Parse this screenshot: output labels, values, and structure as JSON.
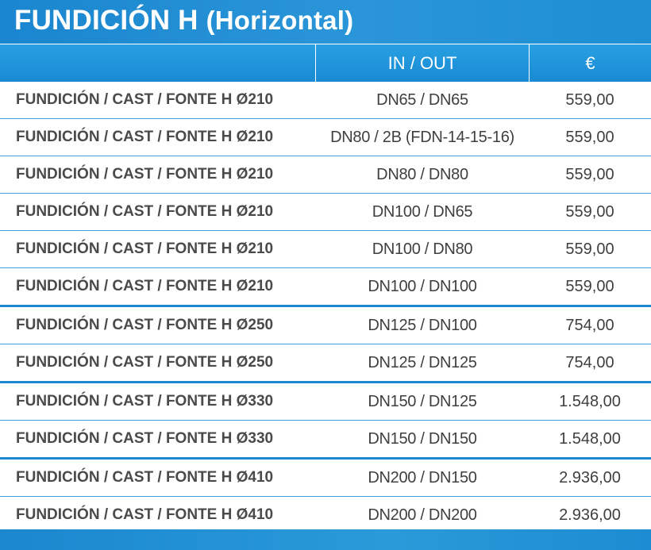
{
  "title": {
    "main": "FUNDICIÓN H",
    "paren": "(Horizontal)"
  },
  "table": {
    "headers": {
      "model": "",
      "inout": "IN / OUT",
      "price": "€"
    },
    "rows": [
      {
        "model": "FUNDICIÓN / CAST / FONTE H Ø210",
        "inout": "DN65 / DN65",
        "price": "559,00",
        "group_end": false
      },
      {
        "model": "FUNDICIÓN / CAST / FONTE H Ø210",
        "inout": "DN80 / 2B (FDN-14-15-16)",
        "price": "559,00",
        "group_end": false
      },
      {
        "model": "FUNDICIÓN / CAST / FONTE H Ø210",
        "inout": "DN80 / DN80",
        "price": "559,00",
        "group_end": false
      },
      {
        "model": "FUNDICIÓN / CAST / FONTE H Ø210",
        "inout": "DN100 / DN65",
        "price": "559,00",
        "group_end": false
      },
      {
        "model": "FUNDICIÓN / CAST / FONTE H Ø210",
        "inout": "DN100 / DN80",
        "price": "559,00",
        "group_end": false
      },
      {
        "model": "FUNDICIÓN / CAST / FONTE H Ø210",
        "inout": "DN100 / DN100",
        "price": "559,00",
        "group_end": true
      },
      {
        "model": "FUNDICIÓN / CAST / FONTE H Ø250",
        "inout": "DN125 / DN100",
        "price": "754,00",
        "group_end": false
      },
      {
        "model": "FUNDICIÓN / CAST / FONTE H Ø250",
        "inout": "DN125 / DN125",
        "price": "754,00",
        "group_end": true
      },
      {
        "model": "FUNDICIÓN / CAST / FONTE H Ø330",
        "inout": "DN150 / DN125",
        "price": "1.548,00",
        "group_end": false
      },
      {
        "model": "FUNDICIÓN / CAST / FONTE H Ø330",
        "inout": "DN150 / DN150",
        "price": "1.548,00",
        "group_end": true
      },
      {
        "model": "FUNDICIÓN / CAST / FONTE H Ø410",
        "inout": "DN200 / DN150",
        "price": "2.936,00",
        "group_end": false
      },
      {
        "model": "FUNDICIÓN / CAST / FONTE H Ø410",
        "inout": "DN200 / DN200",
        "price": "2.936,00",
        "group_end": false
      }
    ]
  },
  "colors": {
    "brand_blue": "#1a86cf",
    "row_line": "#3d9ed8",
    "text": "#3f3f3f"
  }
}
